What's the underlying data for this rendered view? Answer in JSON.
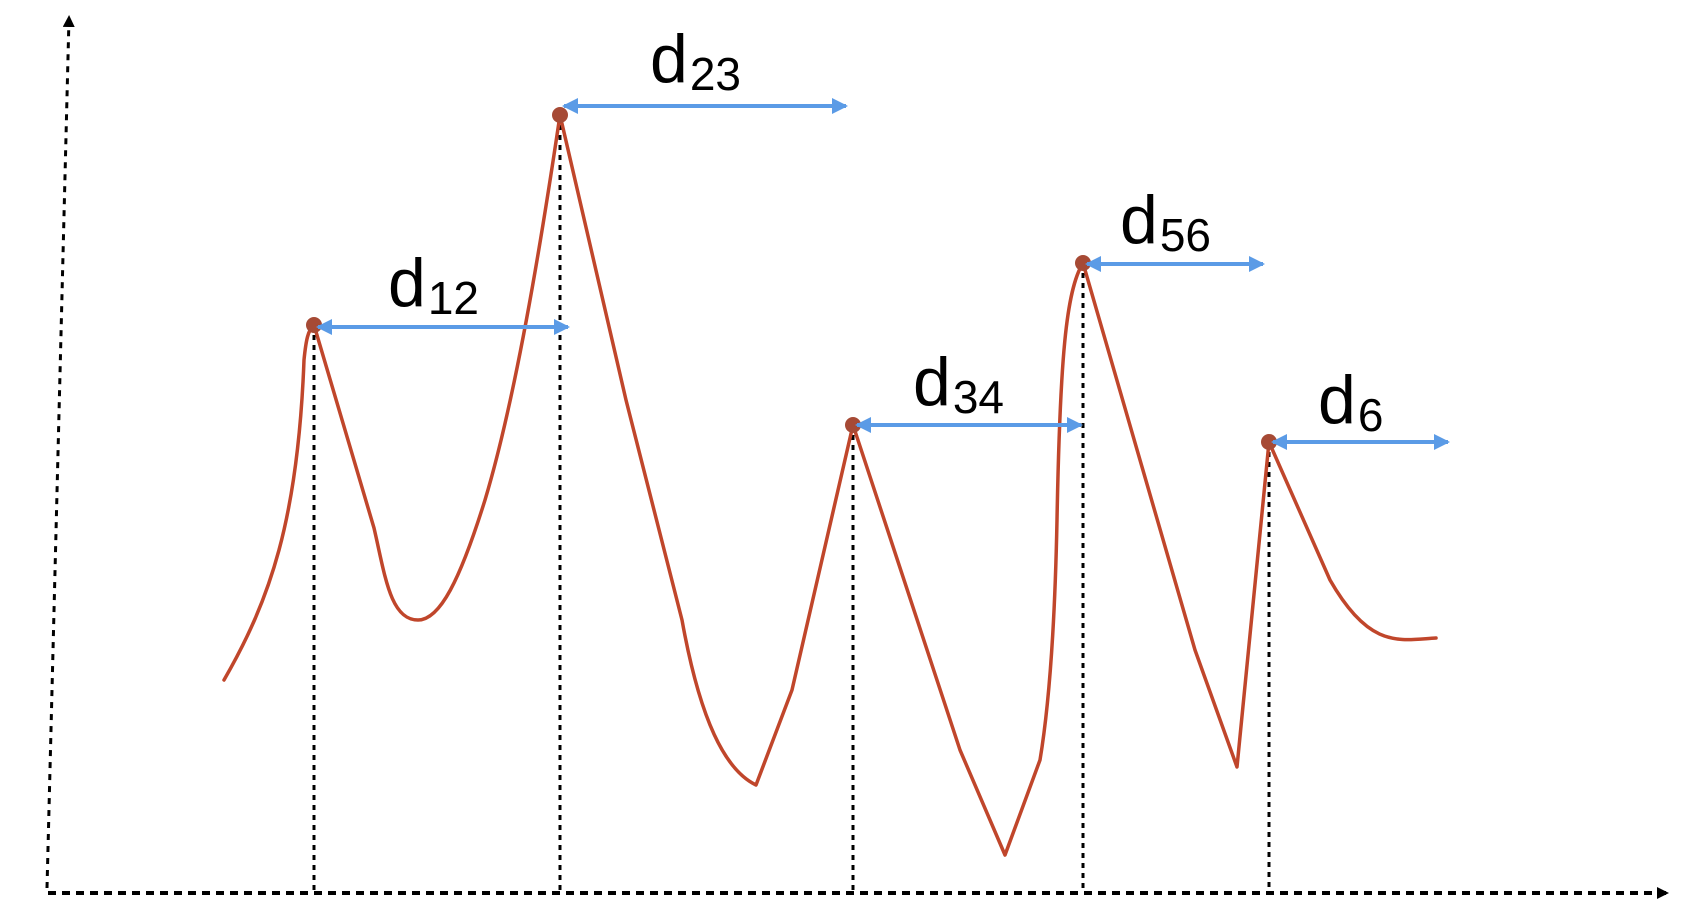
{
  "diagram": {
    "labels": [
      {
        "id": "d12",
        "base": "d",
        "sub": "12"
      },
      {
        "id": "d23",
        "base": "d",
        "sub": "23"
      },
      {
        "id": "d34",
        "base": "d",
        "sub": "34"
      },
      {
        "id": "d56",
        "base": "d",
        "sub": "56"
      },
      {
        "id": "d6",
        "base": "d",
        "sub": "6"
      }
    ],
    "colors": {
      "curve": "#c0462b",
      "peak": "#a64a35",
      "arrow": "#5b9be6",
      "axis": "#000000"
    }
  }
}
